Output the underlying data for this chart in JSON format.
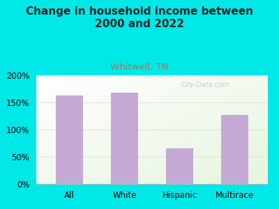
{
  "categories": [
    "All",
    "White",
    "Hispanic",
    "Multirace"
  ],
  "values": [
    163,
    168,
    65,
    127
  ],
  "bar_color": "#c4aad4",
  "title": "Change in household income between\n2000 and 2022",
  "subtitle": "Whitwell, TN",
  "subtitle_color": "#aa7755",
  "title_fontsize": 11,
  "subtitle_fontsize": 9.5,
  "tick_fontsize": 8.5,
  "bg_color": "#00e8e8",
  "ylim": [
    0,
    200
  ],
  "yticks": [
    0,
    50,
    100,
    150,
    200
  ],
  "ytick_labels": [
    "0%",
    "50%",
    "100%",
    "150%",
    "200%"
  ],
  "bar_width": 0.5,
  "watermark": "City-Data.com"
}
